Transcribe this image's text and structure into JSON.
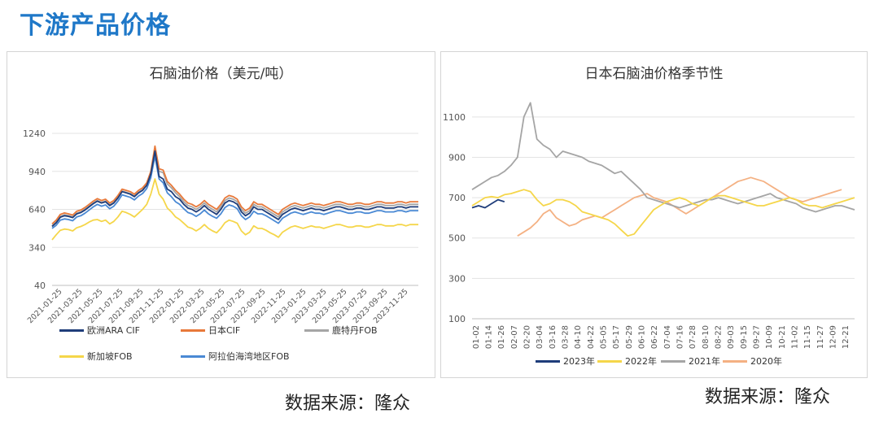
{
  "page": {
    "title": "下游产品价格",
    "source_left": "数据来源：隆众",
    "source_right": "数据来源：隆众"
  },
  "chart_data": [
    {
      "type": "line",
      "title": "石脑油价格（美元/吨）",
      "ylim": [
        40,
        1240
      ],
      "yticks": [
        40,
        340,
        640,
        940,
        1240
      ],
      "xticks": [
        "2021-01-25",
        "2021-03-25",
        "2021-05-25",
        "2021-07-25",
        "2021-09-25",
        "2021-11-25",
        "2022-01-25",
        "2022-03-25",
        "2022-05-25",
        "2022-07-25",
        "2022-09-25",
        "2022-11-25",
        "2023-01-25",
        "2023-03-25",
        "2023-05-25",
        "2023-07-25",
        "2023-09-25",
        "2023-11-25"
      ],
      "x_count": 90,
      "series": [
        {
          "name": "欧洲ARA CIF",
          "color": "#1f3d7a",
          "values": [
            505,
            535,
            578,
            590,
            585,
            575,
            605,
            615,
            635,
            660,
            685,
            705,
            690,
            700,
            670,
            690,
            730,
            780,
            770,
            760,
            740,
            770,
            790,
            830,
            920,
            1100,
            900,
            880,
            800,
            780,
            740,
            720,
            680,
            650,
            640,
            620,
            640,
            670,
            640,
            620,
            600,
            640,
            690,
            710,
            700,
            680,
            620,
            590,
            610,
            660,
            640,
            640,
            620,
            600,
            580,
            560,
            600,
            620,
            640,
            650,
            640,
            630,
            640,
            650,
            640,
            640,
            630,
            640,
            650,
            660,
            660,
            650,
            640,
            640,
            650,
            650,
            640,
            640,
            650,
            660,
            660,
            650,
            650,
            650,
            660,
            660,
            650,
            660,
            660,
            660
          ]
        },
        {
          "name": "日本CIF",
          "color": "#e8793a",
          "values": [
            525,
            555,
            600,
            612,
            605,
            595,
            625,
            635,
            655,
            680,
            705,
            725,
            710,
            720,
            690,
            710,
            750,
            800,
            790,
            780,
            760,
            790,
            810,
            850,
            940,
            1140,
            960,
            950,
            860,
            830,
            790,
            760,
            720,
            690,
            680,
            660,
            680,
            710,
            680,
            660,
            640,
            680,
            730,
            750,
            740,
            720,
            660,
            630,
            650,
            700,
            680,
            680,
            660,
            640,
            620,
            600,
            640,
            660,
            680,
            690,
            680,
            670,
            680,
            690,
            680,
            680,
            670,
            680,
            690,
            700,
            700,
            690,
            680,
            680,
            690,
            690,
            680,
            680,
            690,
            700,
            700,
            690,
            690,
            690,
            700,
            700,
            690,
            700,
            700,
            700
          ]
        },
        {
          "name": "鹿特丹FOB",
          "color": "#a5a5a5",
          "values": [
            510,
            540,
            585,
            597,
            590,
            580,
            610,
            620,
            640,
            665,
            690,
            710,
            695,
            705,
            675,
            695,
            735,
            785,
            775,
            765,
            745,
            775,
            795,
            835,
            925,
            1110,
            940,
            930,
            840,
            810,
            770,
            740,
            700,
            670,
            660,
            640,
            660,
            690,
            660,
            640,
            620,
            660,
            710,
            730,
            720,
            700,
            640,
            610,
            630,
            680,
            660,
            660,
            640,
            620,
            600,
            580,
            620,
            640,
            660,
            670,
            660,
            650,
            660,
            670,
            660,
            660,
            650,
            660,
            670,
            680,
            680,
            670,
            660,
            660,
            670,
            670,
            660,
            660,
            670,
            680,
            680,
            670,
            670,
            670,
            680,
            680,
            670,
            680,
            680,
            680
          ]
        },
        {
          "name": "新加坡FOB",
          "color": "#f5d64a",
          "values": [
            400,
            440,
            475,
            485,
            480,
            470,
            495,
            505,
            520,
            540,
            555,
            560,
            545,
            555,
            525,
            545,
            580,
            625,
            615,
            600,
            580,
            610,
            640,
            680,
            760,
            880,
            760,
            720,
            650,
            620,
            580,
            560,
            530,
            500,
            490,
            470,
            490,
            520,
            490,
            470,
            455,
            490,
            535,
            555,
            545,
            530,
            470,
            440,
            460,
            510,
            490,
            490,
            475,
            455,
            440,
            420,
            460,
            480,
            500,
            510,
            500,
            490,
            500,
            510,
            500,
            500,
            490,
            500,
            510,
            520,
            520,
            510,
            500,
            500,
            510,
            510,
            500,
            500,
            510,
            520,
            520,
            510,
            510,
            510,
            520,
            520,
            510,
            520,
            520,
            520
          ]
        },
        {
          "name": "阿拉伯海湾地区FOB",
          "color": "#4a89d4",
          "values": [
            490,
            515,
            555,
            565,
            560,
            550,
            580,
            590,
            610,
            635,
            660,
            680,
            665,
            675,
            645,
            665,
            705,
            755,
            745,
            735,
            715,
            745,
            765,
            805,
            890,
            1060,
            880,
            850,
            770,
            740,
            700,
            680,
            645,
            615,
            605,
            585,
            605,
            635,
            605,
            585,
            570,
            605,
            655,
            675,
            665,
            645,
            590,
            560,
            580,
            625,
            605,
            605,
            590,
            570,
            550,
            530,
            570,
            590,
            610,
            620,
            610,
            600,
            610,
            620,
            610,
            610,
            600,
            610,
            620,
            630,
            630,
            620,
            610,
            610,
            620,
            620,
            610,
            610,
            620,
            630,
            630,
            620,
            620,
            620,
            630,
            630,
            620,
            630,
            630,
            630
          ]
        }
      ]
    },
    {
      "type": "line",
      "title": "日本石脑油价格季节性",
      "ylim": [
        100,
        1200
      ],
      "yticks": [
        100,
        300,
        500,
        700,
        900,
        1100
      ],
      "xticks": [
        "01-02",
        "01-14",
        "01-26",
        "02-07",
        "02-20",
        "03-04",
        "03-16",
        "03-28",
        "04-10",
        "04-22",
        "05-05",
        "05-17",
        "05-29",
        "06-10",
        "06-22",
        "07-04",
        "07-16",
        "07-28",
        "08-10",
        "08-22",
        "09-03",
        "09-15",
        "09-27",
        "10-09",
        "10-21",
        "11-02",
        "11-15",
        "11-27",
        "12-09",
        "12-21"
      ],
      "x_count": 60,
      "series": [
        {
          "name": "2023年",
          "color": "#1f3d7a",
          "values": [
            650,
            660,
            650,
            670,
            690,
            680,
            null,
            null,
            null,
            null,
            null,
            null,
            null,
            null,
            null,
            null,
            null,
            null,
            null,
            null,
            null,
            null,
            null,
            null,
            null,
            null,
            null,
            null,
            null,
            null,
            null,
            null,
            null,
            null,
            null,
            null,
            null,
            null,
            null,
            null,
            null,
            null,
            null,
            null,
            null,
            null,
            null,
            null,
            null,
            null,
            null,
            null,
            null,
            null,
            null,
            null,
            null,
            null,
            null,
            null
          ]
        },
        {
          "name": "2022年",
          "color": "#f5d64a",
          "values": [
            660,
            680,
            700,
            705,
            700,
            715,
            720,
            730,
            740,
            730,
            690,
            660,
            670,
            690,
            690,
            680,
            660,
            630,
            620,
            610,
            600,
            590,
            570,
            540,
            510,
            520,
            560,
            600,
            640,
            660,
            680,
            690,
            700,
            690,
            670,
            660,
            680,
            700,
            710,
            710,
            700,
            690,
            680,
            670,
            660,
            660,
            670,
            680,
            690,
            700,
            690,
            670,
            660,
            660,
            650,
            660,
            670,
            680,
            690,
            700
          ]
        },
        {
          "name": "2021年",
          "color": "#a5a5a5",
          "values": [
            740,
            760,
            780,
            800,
            810,
            830,
            860,
            900,
            1100,
            1170,
            990,
            960,
            940,
            900,
            930,
            920,
            910,
            900,
            880,
            870,
            860,
            840,
            820,
            830,
            800,
            770,
            740,
            700,
            690,
            680,
            670,
            660,
            650,
            660,
            670,
            680,
            690,
            690,
            700,
            690,
            680,
            670,
            680,
            690,
            700,
            710,
            720,
            700,
            690,
            680,
            670,
            650,
            640,
            630,
            640,
            650,
            660,
            660,
            650,
            640
          ]
        },
        {
          "name": "2020年",
          "color": "#f4b183",
          "values": [
            null,
            null,
            null,
            null,
            null,
            null,
            null,
            510,
            530,
            550,
            580,
            620,
            640,
            600,
            580,
            560,
            570,
            590,
            600,
            610,
            600,
            620,
            640,
            660,
            680,
            700,
            710,
            720,
            700,
            690,
            680,
            660,
            640,
            620,
            640,
            660,
            680,
            700,
            720,
            740,
            760,
            780,
            790,
            800,
            790,
            780,
            760,
            740,
            720,
            700,
            690,
            680,
            690,
            700,
            710,
            720,
            730,
            740,
            null,
            null
          ]
        }
      ]
    }
  ]
}
